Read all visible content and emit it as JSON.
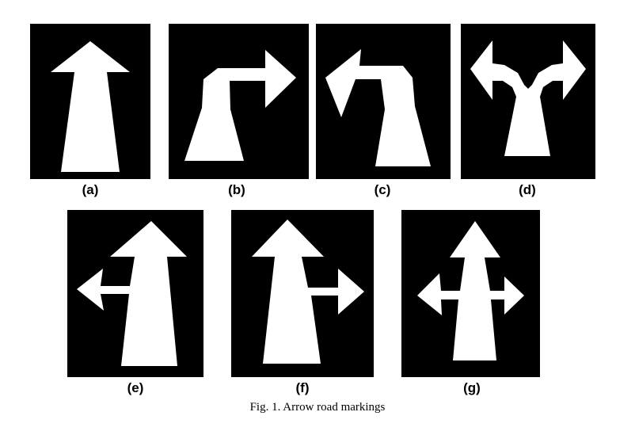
{
  "figure": {
    "panels": [
      {
        "id": "a",
        "label": "(a)",
        "arrow": "straight-arrow-icon"
      },
      {
        "id": "b",
        "label": "(b)",
        "arrow": "turn-right-arrow-icon"
      },
      {
        "id": "c",
        "label": "(c)",
        "arrow": "turn-left-arrow-icon"
      },
      {
        "id": "d",
        "label": "(d)",
        "arrow": "left-right-fork-arrow-icon"
      },
      {
        "id": "e",
        "label": "(e)",
        "arrow": "straight-left-arrow-icon"
      },
      {
        "id": "f",
        "label": "(f)",
        "arrow": "straight-right-arrow-icon"
      },
      {
        "id": "g",
        "label": "(g)",
        "arrow": "straight-left-right-arrow-icon"
      }
    ],
    "caption": "Fig. 1.   Arrow road markings"
  },
  "colors": {
    "panel_background": "#000000",
    "arrow_fill": "#ffffff"
  }
}
